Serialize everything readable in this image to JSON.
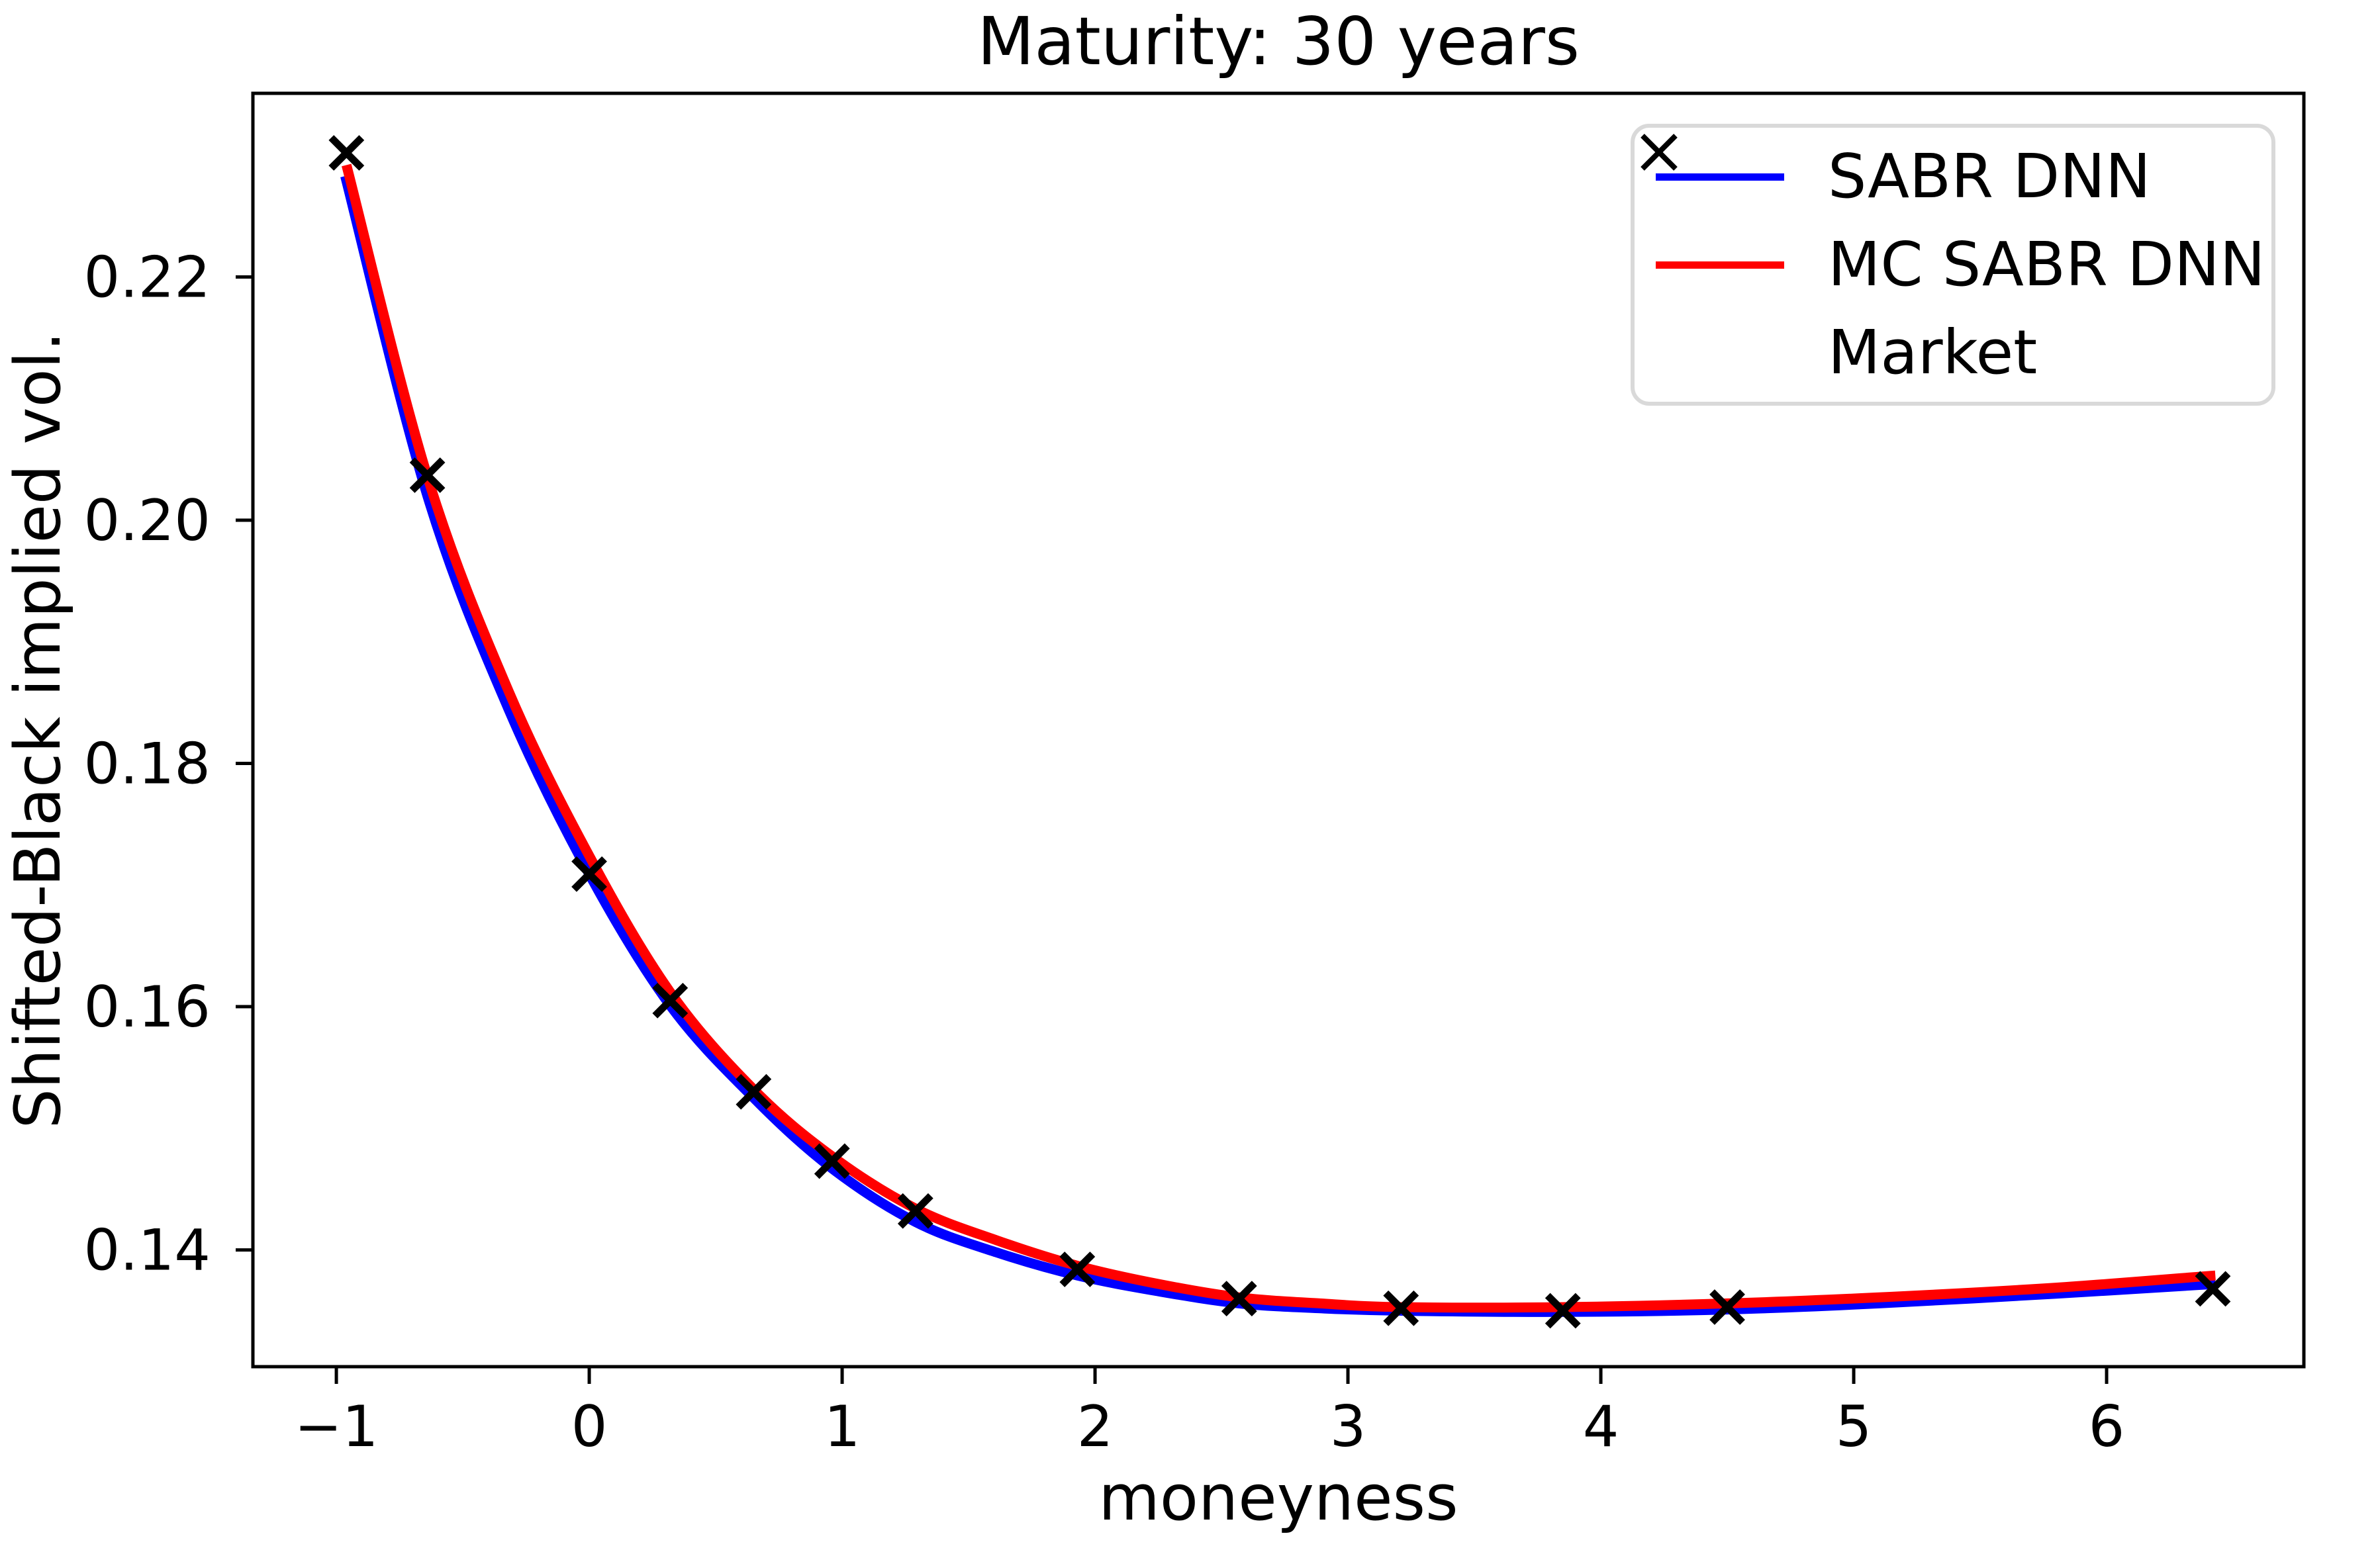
{
  "chart": {
    "title": "Maturity: 30 years",
    "xlabel": "moneyness",
    "ylabel": "Shifted-Black implied vol."
  },
  "chart_data": {
    "type": "line",
    "title": "Maturity: 30 years",
    "xlabel": "moneyness",
    "ylabel": "Shifted-Black implied vol.",
    "xlim": [
      -1.33,
      6.78
    ],
    "ylim": [
      0.1304,
      0.2351
    ],
    "grid": false,
    "legend_position": "upper right",
    "background": "#ffffff",
    "axis_color": "#000000",
    "x_ticks": {
      "values": [
        -1,
        0,
        1,
        2,
        3,
        4,
        5,
        6
      ],
      "labels": [
        "−1",
        "0",
        "1",
        "2",
        "3",
        "4",
        "5",
        "6"
      ]
    },
    "y_ticks": {
      "values": [
        0.14,
        0.16,
        0.18,
        0.2,
        0.22
      ],
      "labels": [
        "0.14",
        "0.16",
        "0.18",
        "0.20",
        "0.22"
      ]
    },
    "series": [
      {
        "name": "SABR DNN",
        "kind": "line",
        "color": "#0000ff",
        "points": [
          [
            -0.965,
            0.2283
          ],
          [
            -0.64,
            0.202
          ],
          [
            -0.32,
            0.1845
          ],
          [
            0.0,
            0.1709
          ],
          [
            0.32,
            0.1601
          ],
          [
            0.65,
            0.1525
          ],
          [
            0.96,
            0.1467
          ],
          [
            1.29,
            0.1423
          ],
          [
            1.61,
            0.1398
          ],
          [
            1.93,
            0.1379
          ],
          [
            2.25,
            0.1366
          ],
          [
            2.57,
            0.1356
          ],
          [
            2.89,
            0.1352
          ],
          [
            3.21,
            0.135
          ],
          [
            3.85,
            0.1349
          ],
          [
            4.5,
            0.1351
          ],
          [
            5.1,
            0.1356
          ],
          [
            5.8,
            0.1364
          ],
          [
            6.43,
            0.1372
          ]
        ]
      },
      {
        "name": "MC SABR DNN",
        "kind": "line",
        "color": "#ff0000",
        "points": [
          [
            -0.96,
            0.2292
          ],
          [
            -0.64,
            0.2036
          ],
          [
            -0.32,
            0.186
          ],
          [
            0.0,
            0.1724
          ],
          [
            0.32,
            0.1612
          ],
          [
            0.65,
            0.1532
          ],
          [
            0.96,
            0.1477
          ],
          [
            1.29,
            0.1434
          ],
          [
            1.61,
            0.1408
          ],
          [
            1.93,
            0.1387
          ],
          [
            2.25,
            0.1372
          ],
          [
            2.57,
            0.1361
          ],
          [
            2.89,
            0.1356
          ],
          [
            3.21,
            0.1353
          ],
          [
            3.85,
            0.1353
          ],
          [
            4.5,
            0.1356
          ],
          [
            5.1,
            0.1361
          ],
          [
            5.8,
            0.1369
          ],
          [
            6.43,
            0.1379
          ]
        ]
      },
      {
        "name": "Market",
        "kind": "scatter",
        "marker": "x",
        "color": "#000000",
        "points": [
          [
            -0.96,
            0.2302
          ],
          [
            -0.64,
            0.2037
          ],
          [
            0.0,
            0.1709
          ],
          [
            0.32,
            0.1605
          ],
          [
            0.65,
            0.153
          ],
          [
            0.96,
            0.1473
          ],
          [
            1.29,
            0.1432
          ],
          [
            1.93,
            0.1384
          ],
          [
            2.57,
            0.136
          ],
          [
            3.21,
            0.1352
          ],
          [
            3.85,
            0.135
          ],
          [
            4.5,
            0.1353
          ],
          [
            6.42,
            0.1368
          ]
        ]
      }
    ]
  },
  "legend": {
    "border_color": "#d9d9d9"
  }
}
